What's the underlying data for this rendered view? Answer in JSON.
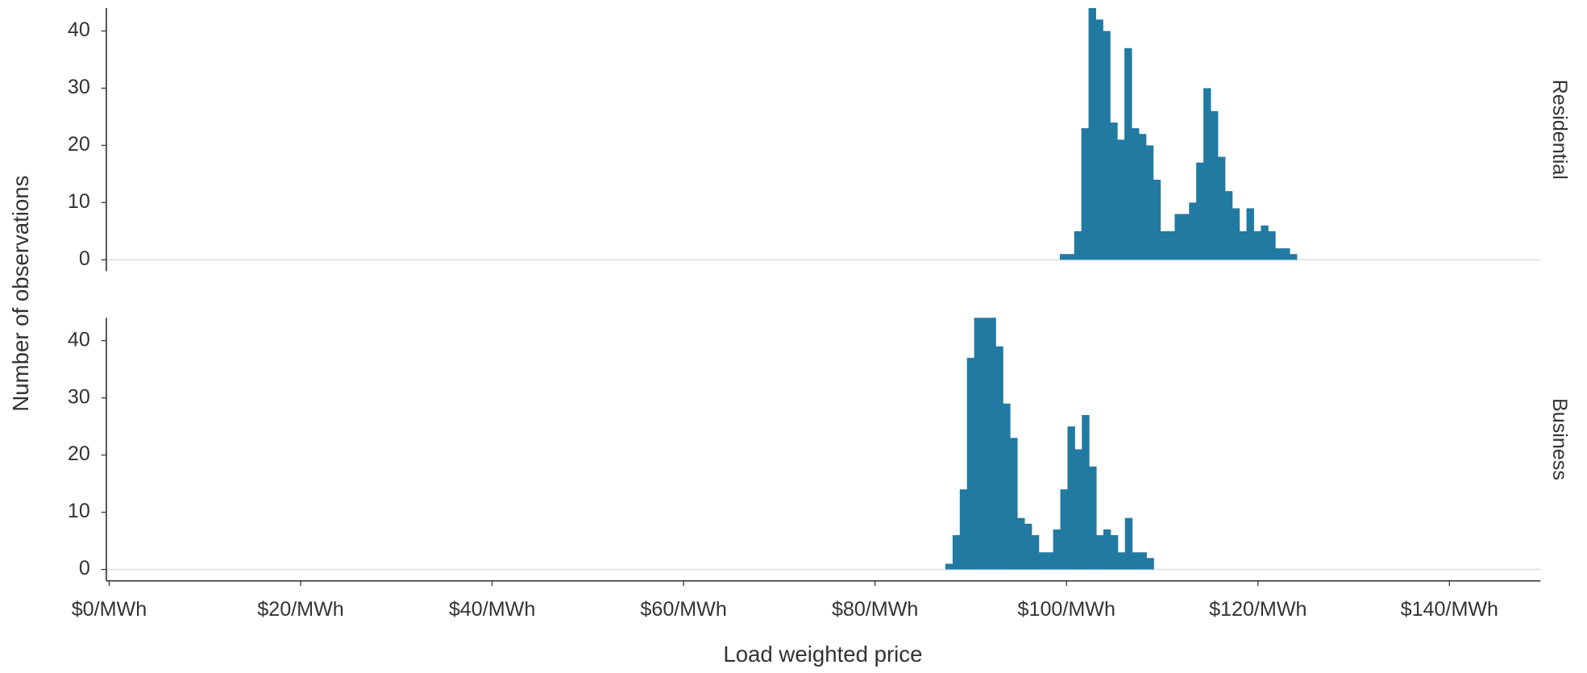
{
  "chart_data": [
    {
      "type": "histogram",
      "facet_label": "Residential",
      "ylabel": "Number of observations",
      "color": "#217aa1",
      "bins": [
        99.3,
        100.05,
        100.8,
        101.55,
        102.3,
        103.05,
        103.8,
        104.55,
        105.3,
        106.05,
        106.8,
        107.55,
        108.3,
        109.05,
        109.8,
        110.55,
        111.3,
        112.05,
        112.8,
        113.55,
        114.3,
        115.05,
        115.8,
        116.55,
        117.3,
        118.05,
        118.8,
        119.55,
        120.3,
        121.05,
        121.8,
        122.55,
        123.3,
        124.05
      ],
      "values": [
        1,
        1,
        5,
        23,
        44,
        42,
        40,
        24,
        21,
        37,
        23,
        22,
        20,
        14,
        5,
        5,
        8,
        8,
        10,
        17,
        30,
        26,
        18,
        12,
        9,
        5,
        9,
        5,
        6,
        5,
        2,
        2,
        1
      ],
      "xlim": [
        -0.3,
        149.5
      ],
      "ylim": [
        -2,
        44
      ],
      "yticks": [
        0,
        10,
        20,
        30,
        40
      ]
    },
    {
      "type": "histogram",
      "facet_label": "Business",
      "xlabel": "Load weighted price",
      "color": "#217aa1",
      "bins": [
        87.35,
        88.1,
        88.85,
        89.6,
        90.35,
        91.1,
        91.85,
        92.6,
        93.35,
        94.1,
        94.85,
        95.6,
        96.35,
        97.1,
        97.85,
        98.6,
        99.35,
        100.1,
        100.85,
        101.6,
        102.35,
        103.1,
        103.85,
        104.6,
        105.35,
        106.1,
        106.85,
        107.6,
        108.35,
        109.1
      ],
      "values": [
        1,
        6,
        14,
        37,
        44,
        44,
        44,
        39,
        29,
        23,
        9,
        8,
        6,
        3,
        3,
        7,
        14,
        25,
        21,
        27,
        18,
        6,
        7,
        6,
        3,
        9,
        3,
        3,
        2
      ],
      "xlim": [
        -0.3,
        149.5
      ],
      "ylim": [
        -2,
        44
      ],
      "yticks": [
        0,
        10,
        20,
        30,
        40
      ],
      "xticks": [
        {
          "value": 0,
          "label": "$0/MWh"
        },
        {
          "value": 20,
          "label": "$20/MWh"
        },
        {
          "value": 40,
          "label": "$40/MWh"
        },
        {
          "value": 60,
          "label": "$60/MWh"
        },
        {
          "value": 80,
          "label": "$80/MWh"
        },
        {
          "value": 100,
          "label": "$100/MWh"
        },
        {
          "value": 120,
          "label": "$120/MWh"
        },
        {
          "value": 140,
          "label": "$140/MWh"
        }
      ]
    }
  ]
}
